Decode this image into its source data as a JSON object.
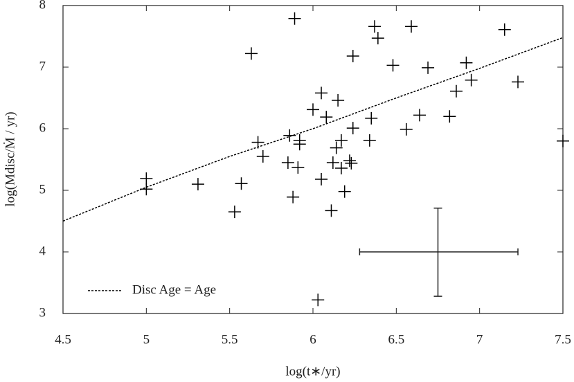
{
  "chart_data": {
    "type": "scatter",
    "xlabel": "log(t∗/yr)",
    "ylabel": "log(Mdisc/Ṁ / yr)",
    "x": [
      5.89,
      5.63,
      6.37,
      6.39,
      6.59,
      7.15,
      6.24,
      6.48,
      6.69,
      6.92,
      7.23,
      6.95,
      6.86,
      6.82,
      6.64,
      6.56,
      6.35,
      6.34,
      6.05,
      6.0,
      6.08,
      6.15,
      6.24,
      5.86,
      5.92,
      5.92,
      5.67,
      5.7,
      5.85,
      5.91,
      6.17,
      6.14,
      6.12,
      6.17,
      6.22,
      6.23,
      6.19,
      6.05,
      6.11,
      5.88,
      5.57,
      5.53,
      5.31,
      5.0,
      5.0,
      7.5,
      6.03
    ],
    "values": [
      7.79,
      7.22,
      7.66,
      7.47,
      7.66,
      7.61,
      7.18,
      7.03,
      6.99,
      7.07,
      6.76,
      6.79,
      6.61,
      6.2,
      6.22,
      5.99,
      6.17,
      5.81,
      6.58,
      6.31,
      6.19,
      6.46,
      6.01,
      5.89,
      5.81,
      5.75,
      5.78,
      5.55,
      5.45,
      5.37,
      5.81,
      5.69,
      5.45,
      5.36,
      5.48,
      5.44,
      4.98,
      5.18,
      4.67,
      4.89,
      5.11,
      4.65,
      5.1,
      5.19,
      5.02,
      5.8,
      3.22
    ],
    "color": "#000000",
    "series": [
      {
        "name": "Disc Age = Age",
        "color": "#000000",
        "style": "dotted",
        "x": [
          4.5,
          5.0,
          5.5,
          6.0,
          6.5,
          7.0,
          7.5
        ],
        "values": [
          4.5,
          5.05,
          5.55,
          6.0,
          6.5,
          6.98,
          7.48
        ]
      }
    ],
    "errorbar": {
      "x": 6.75,
      "y": 4.0,
      "xerr": [
        0.47,
        0.48
      ],
      "yerr": [
        0.72,
        0.71
      ]
    },
    "xlim": [
      4.5,
      7.5
    ],
    "xticks": [
      4.5,
      5,
      5.5,
      6,
      6.5,
      7,
      7.5
    ],
    "ylim": [
      3,
      8
    ],
    "yticks": [
      3,
      4,
      5,
      6,
      7,
      8
    ],
    "grid": false,
    "legend": "lower left"
  }
}
